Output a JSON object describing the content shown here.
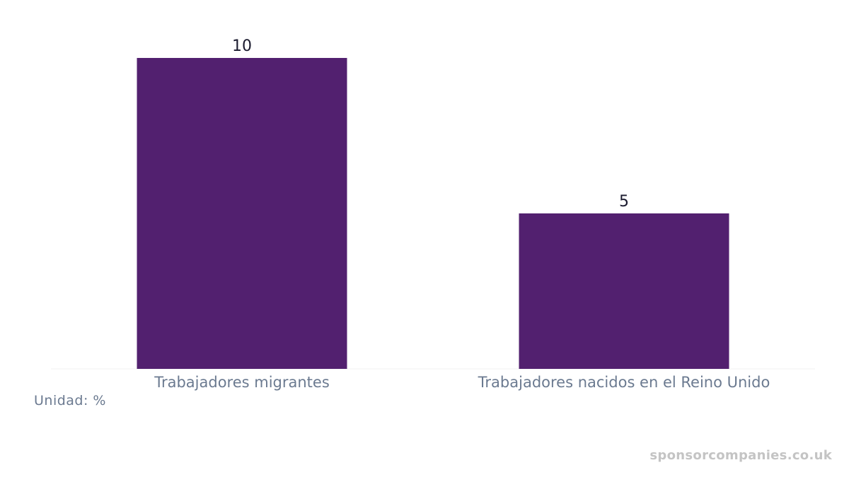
{
  "chart_data": {
    "type": "bar",
    "categories": [
      "Trabajadores migrantes",
      "Trabajadores nacidos en el Reino Unido"
    ],
    "values": [
      10,
      5
    ],
    "title": "",
    "xlabel": "",
    "ylabel": "",
    "ylim": [
      0,
      10
    ],
    "grid": false,
    "bar_color": "#52206f"
  },
  "unit_label": "Unidad: %",
  "watermark": "sponsorcompanies.co.uk"
}
